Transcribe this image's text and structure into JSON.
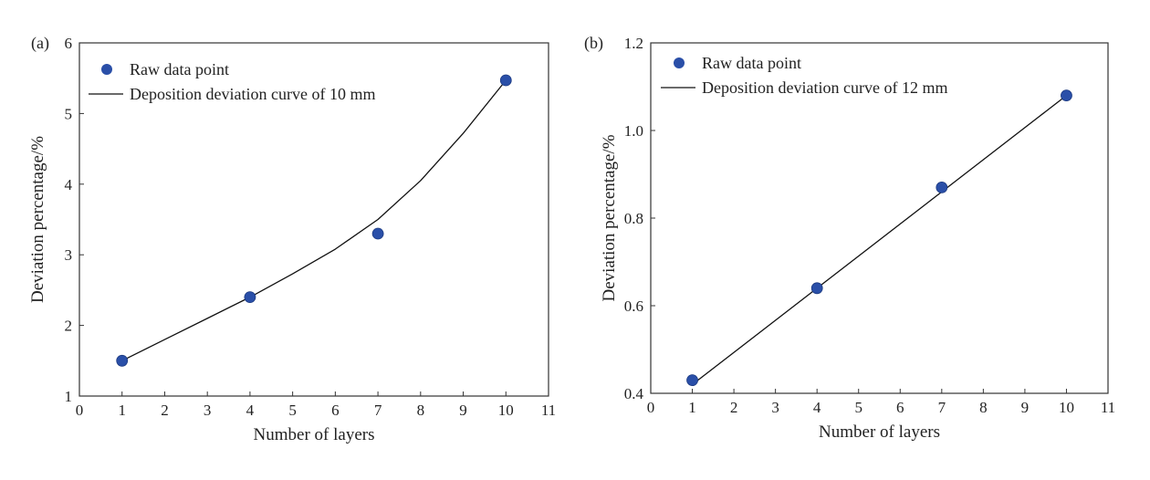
{
  "chart_data": [
    {
      "type": "scatter",
      "panel_label": "(a)",
      "xlabel": "Number of layers",
      "ylabel": "Deviation percentage/%",
      "xlim": [
        0,
        11
      ],
      "ylim": [
        1,
        6
      ],
      "x_ticks": [
        "0",
        "1",
        "2",
        "3",
        "4",
        "5",
        "6",
        "7",
        "8",
        "9",
        "10",
        "11"
      ],
      "y_ticks": [
        "1",
        "2",
        "3",
        "4",
        "5",
        "6"
      ],
      "series": [
        {
          "name": "Raw data point",
          "kind": "scatter",
          "color": "#2a4fa8",
          "x": [
            1,
            4,
            7,
            10
          ],
          "y": [
            1.5,
            2.4,
            3.3,
            5.47
          ]
        },
        {
          "name": "Deposition deviation curve of 10 mm",
          "kind": "line",
          "color": "#111111",
          "x": [
            1,
            2,
            3,
            4,
            5,
            6,
            7,
            8,
            9,
            10
          ],
          "y": [
            1.5,
            1.8,
            2.1,
            2.4,
            2.73,
            3.08,
            3.5,
            4.05,
            4.72,
            5.47
          ]
        }
      ],
      "legend_position": "top-left",
      "grid": false
    },
    {
      "type": "scatter",
      "panel_label": "(b)",
      "xlabel": "Number of layers",
      "ylabel": "Deviation percentage/%",
      "xlim": [
        0,
        11
      ],
      "ylim": [
        0.4,
        1.2
      ],
      "x_ticks": [
        "0",
        "1",
        "2",
        "3",
        "4",
        "5",
        "6",
        "7",
        "8",
        "9",
        "10",
        "11"
      ],
      "y_ticks": [
        "0.4",
        "0.6",
        "0.8",
        "1.0",
        "1.2"
      ],
      "series": [
        {
          "name": "Raw data point",
          "kind": "scatter",
          "color": "#2a4fa8",
          "x": [
            1,
            4,
            7,
            10
          ],
          "y": [
            0.43,
            0.64,
            0.87,
            1.08
          ]
        },
        {
          "name": "Deposition deviation curve of 12 mm",
          "kind": "line",
          "color": "#111111",
          "x": [
            1,
            10
          ],
          "y": [
            0.42,
            1.08
          ]
        }
      ],
      "legend_position": "top-left",
      "grid": false
    }
  ]
}
